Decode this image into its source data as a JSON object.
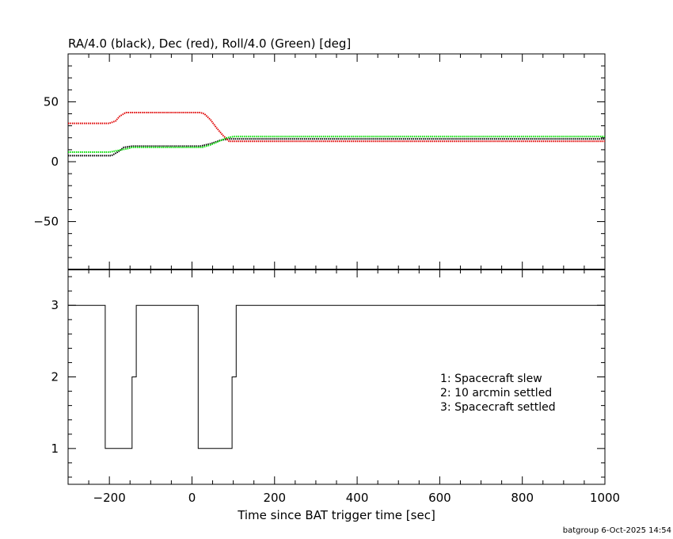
{
  "chart_data": [
    {
      "type": "line",
      "title": "RA/4.0 (black), Dec (red), Roll/4.0 (Green) [deg]",
      "xlim": [
        -300,
        1000
      ],
      "ylim": [
        -90,
        90
      ],
      "yticks": [
        -50,
        0,
        50
      ],
      "series": [
        {
          "color": "#000000",
          "style": "dotted",
          "x": [
            -300,
            -195,
            -180,
            -165,
            -145,
            20,
            45,
            70,
            90,
            1000
          ],
          "y": [
            5,
            5,
            8,
            12,
            13,
            13,
            15,
            18,
            19,
            19
          ]
        },
        {
          "color": "#e00000",
          "style": "dotted",
          "x": [
            -300,
            -200,
            -185,
            -175,
            -160,
            20,
            30,
            45,
            60,
            75,
            90,
            1000
          ],
          "y": [
            32,
            32,
            34,
            38,
            41,
            41,
            40,
            35,
            28,
            22,
            17,
            17
          ]
        },
        {
          "color": "#00dd00",
          "style": "dotted",
          "x": [
            -300,
            -200,
            -185,
            -170,
            -155,
            -145,
            25,
            45,
            65,
            85,
            100,
            1000
          ],
          "y": [
            8,
            8,
            9,
            10,
            11,
            12,
            12,
            14,
            17,
            20,
            21,
            21
          ]
        }
      ]
    },
    {
      "type": "line",
      "xlim": [
        -300,
        1000
      ],
      "ylim": [
        0.5,
        3.5
      ],
      "yticks": [
        1,
        2,
        3
      ],
      "xticks": [
        -200,
        0,
        200,
        400,
        600,
        800,
        1000
      ],
      "xlabel": "Time since BAT trigger time [sec]",
      "series": [
        {
          "color": "#000000",
          "style": "step",
          "x": [
            -300,
            -210,
            -210,
            -145,
            -145,
            -135,
            -135,
            15,
            15,
            97,
            97,
            107,
            107,
            1000
          ],
          "y": [
            3,
            3,
            1,
            1,
            2,
            2,
            3,
            3,
            1,
            1,
            2,
            2,
            3,
            3
          ]
        }
      ],
      "legend": [
        "1: Spacecraft slew",
        "2: 10 arcmin settled",
        "3: Spacecraft settled"
      ]
    }
  ],
  "footer": "batgroup  6-Oct-2025 14:54"
}
